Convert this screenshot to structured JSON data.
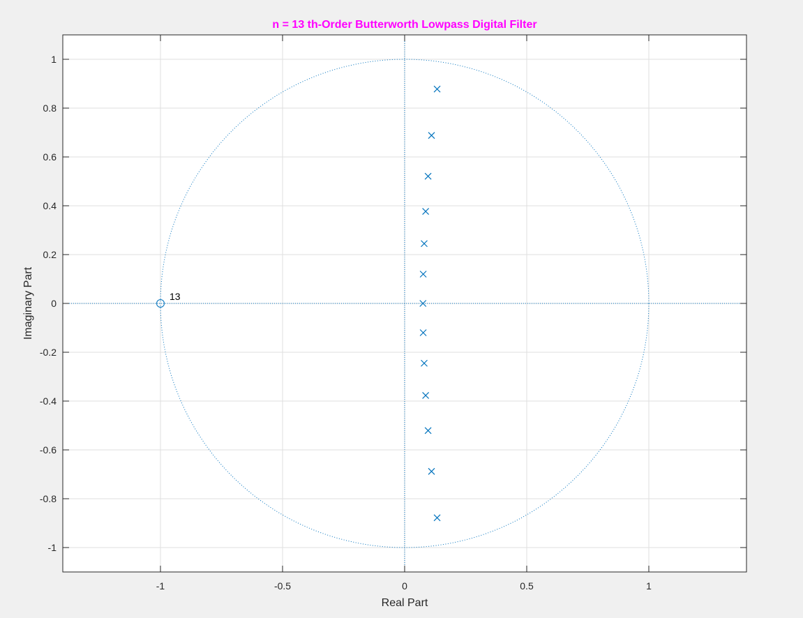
{
  "colors": {
    "background": "#f0f0f0",
    "axes_background": "#ffffff",
    "axis_line": "#262626",
    "grid": "#dfdfdf",
    "series": "#0072bd",
    "title": "#ff00ff"
  },
  "chart_data": {
    "type": "scatter",
    "subtype": "pole-zero plot",
    "title": "n = 13 th-Order Butterworth Lowpass Digital Filter",
    "xlabel": "Real Part",
    "ylabel": "Imaginary Part",
    "xlim": [
      -1.4,
      1.4
    ],
    "ylim": [
      -1.1,
      1.1
    ],
    "xticks": [
      -1,
      -0.5,
      0,
      0.5,
      1
    ],
    "xtick_labels": [
      "-1",
      "-0.5",
      "0",
      "0.5",
      "1"
    ],
    "yticks": [
      1,
      0.8,
      0.6,
      0.4,
      0.2,
      0,
      -0.2,
      -0.4,
      -0.6,
      -0.8,
      -1
    ],
    "ytick_labels": [
      "1",
      "0.8",
      "0.6",
      "0.4",
      "0.2",
      "0",
      "-0.2",
      "-0.4",
      "-0.6",
      "-0.8",
      "-1"
    ],
    "grid": true,
    "unit_circle": true,
    "zeros": [
      {
        "x": -1.0,
        "y": 0.0,
        "multiplicity_label": "13"
      }
    ],
    "poles": [
      {
        "x": 0.133,
        "y": 0.878
      },
      {
        "x": 0.11,
        "y": 0.688
      },
      {
        "x": 0.096,
        "y": 0.521
      },
      {
        "x": 0.086,
        "y": 0.377
      },
      {
        "x": 0.08,
        "y": 0.245
      },
      {
        "x": 0.076,
        "y": 0.12
      },
      {
        "x": 0.075,
        "y": 0.0
      },
      {
        "x": 0.076,
        "y": -0.12
      },
      {
        "x": 0.08,
        "y": -0.245
      },
      {
        "x": 0.086,
        "y": -0.377
      },
      {
        "x": 0.096,
        "y": -0.521
      },
      {
        "x": 0.11,
        "y": -0.688
      },
      {
        "x": 0.133,
        "y": -0.878
      }
    ]
  }
}
